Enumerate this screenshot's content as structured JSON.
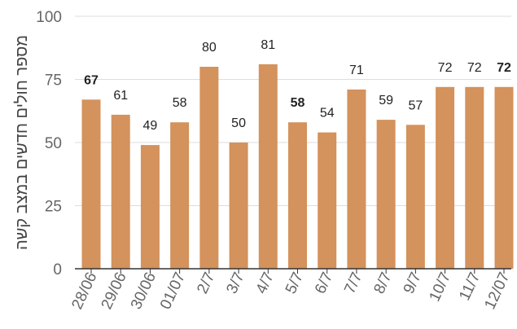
{
  "chart_data": {
    "type": "bar",
    "title": "",
    "xlabel": "",
    "ylabel": "מספר חולים חדשים במצב קשה",
    "categories": [
      "28/06",
      "29/06",
      "30/06",
      "01/07",
      "2/7",
      "3/7",
      "4/7",
      "5/7",
      "6/7",
      "7/7",
      "8/7",
      "9/7",
      "10/7",
      "11/7",
      "12/07"
    ],
    "values": [
      67,
      61,
      49,
      58,
      80,
      50,
      81,
      58,
      54,
      71,
      59,
      57,
      72,
      72,
      72
    ],
    "bold_labels": [
      true,
      false,
      false,
      false,
      false,
      false,
      false,
      true,
      false,
      false,
      false,
      false,
      false,
      false,
      true
    ],
    "ylim": [
      0,
      100
    ],
    "yticks": [
      0,
      25,
      50,
      75,
      100
    ],
    "grid": true,
    "legend": "none",
    "colors": {
      "bar": "#d4925c",
      "grid": "#dddddd",
      "tick_label": "#666666",
      "data_label": "#222222",
      "axis_title": "#444444"
    }
  }
}
